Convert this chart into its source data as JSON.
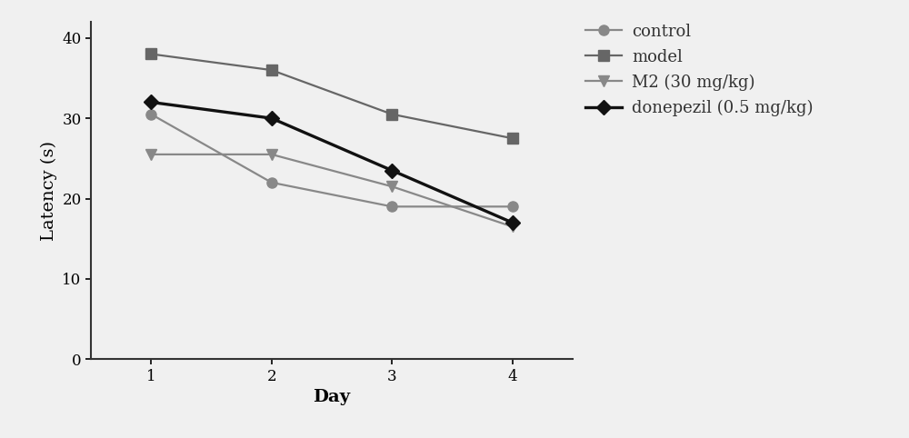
{
  "days": [
    1,
    2,
    3,
    4
  ],
  "control": [
    30.5,
    22.0,
    19.0,
    19.0
  ],
  "model": [
    38.0,
    36.0,
    30.5,
    27.5
  ],
  "m2": [
    25.5,
    25.5,
    21.5,
    16.5
  ],
  "donepezil": [
    32.0,
    30.0,
    23.5,
    17.0
  ],
  "gray_line": "#888888",
  "gray_dark_line": "#666666",
  "donepezil_color": "#111111",
  "bg_color": "#f0f0f0",
  "xlabel": "Day",
  "ylabel": "Latency (s)",
  "xlim": [
    0.5,
    4.5
  ],
  "ylim": [
    0,
    42
  ],
  "yticks": [
    0,
    10,
    20,
    30,
    40
  ],
  "xticks": [
    1,
    2,
    3,
    4
  ],
  "legend_labels": [
    "control",
    "model",
    "M2 (30 mg/kg)",
    "donepezil (0.5 mg/kg)"
  ],
  "label_fontsize": 14,
  "tick_fontsize": 12,
  "legend_fontsize": 13,
  "linewidth": 1.6,
  "donepezil_linewidth": 2.4,
  "markersize": 8
}
